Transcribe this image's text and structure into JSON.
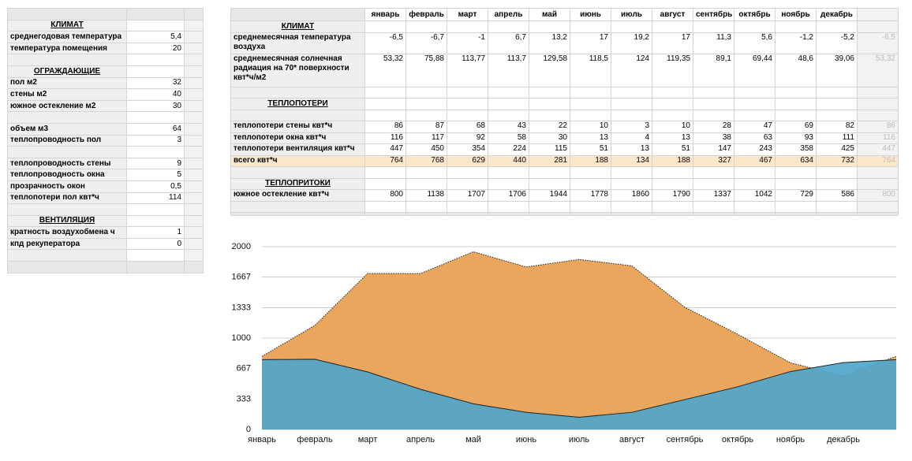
{
  "left_table": {
    "sections": [
      {
        "title": "КЛИМАТ",
        "groups": [
          [
            {
              "label": "среднегодовая температура",
              "value": "5,4"
            },
            {
              "label": "температура помещения",
              "value": "20"
            }
          ]
        ]
      },
      {
        "title": "ОГРАЖДАЮЩИЕ",
        "groups": [
          [
            {
              "label": "пол м2",
              "value": "32"
            },
            {
              "label": "стены м2",
              "value": "40"
            },
            {
              "label": "южное остекление м2",
              "value": "30"
            }
          ],
          [
            {
              "label": "объем м3",
              "value": "64"
            },
            {
              "label": "теплопроводность пол",
              "value": "3"
            }
          ],
          [
            {
              "label": "теплопроводность стены",
              "value": "9"
            },
            {
              "label": "теплопроводность окна",
              "value": "5"
            },
            {
              "label": "прозрачность окон",
              "value": "0,5"
            },
            {
              "label": "теплопотери пол квт*ч",
              "value": "114"
            }
          ]
        ]
      },
      {
        "title": "ВЕНТИЛЯЦИЯ",
        "groups": [
          [
            {
              "label": "кратность воздухобмена ч",
              "value": "1"
            },
            {
              "label": "кпд рекуператора",
              "value": "0"
            }
          ]
        ]
      }
    ]
  },
  "right_table": {
    "months": [
      "январь",
      "февраль",
      "март",
      "апрель",
      "май",
      "июнь",
      "июль",
      "август",
      "сентябрь",
      "октябрь",
      "ноябрь",
      "декабрь"
    ],
    "sections": [
      {
        "title": "КЛИМАТ",
        "rows": [
          {
            "label": "среднемесячная температура воздуха",
            "values": [
              "-6,5",
              "-6,7",
              "-1",
              "6,7",
              "13,2",
              "17",
              "19,2",
              "17",
              "11,3",
              "5,6",
              "-1,2",
              "-5,2"
            ],
            "extra": "-6,5"
          },
          {
            "label": "среднемесячная солнечная радиация на 70* поверхности квт*ч/м2",
            "values": [
              "53,32",
              "75,88",
              "113,77",
              "113,7",
              "129,58",
              "118,5",
              "124",
              "119,35",
              "89,1",
              "69,44",
              "48,6",
              "39,06"
            ],
            "extra": "53,32"
          }
        ]
      },
      {
        "title": "ТЕПЛОПОТЕРИ",
        "rows": [
          {
            "label": "теплопотери стены квт*ч",
            "values": [
              "86",
              "87",
              "68",
              "43",
              "22",
              "10",
              "3",
              "10",
              "28",
              "47",
              "69",
              "82"
            ],
            "extra": "86"
          },
          {
            "label": "теплопотери окна квт*ч",
            "values": [
              "116",
              "117",
              "92",
              "58",
              "30",
              "13",
              "4",
              "13",
              "38",
              "63",
              "93",
              "111"
            ],
            "extra": "116"
          },
          {
            "label": "теплопотери вентиляция квт*ч",
            "values": [
              "447",
              "450",
              "354",
              "224",
              "115",
              "51",
              "13",
              "51",
              "147",
              "243",
              "358",
              "425"
            ],
            "extra": "447"
          },
          {
            "label": "всего квт*ч",
            "values": [
              "764",
              "768",
              "629",
              "440",
              "281",
              "188",
              "134",
              "188",
              "327",
              "467",
              "634",
              "732"
            ],
            "extra": "764"
          }
        ]
      },
      {
        "title": "ТЕПЛОПРИТОКИ",
        "rows": [
          {
            "label": "южное остекление квт*ч",
            "values": [
              "800",
              "1138",
              "1707",
              "1706",
              "1944",
              "1778",
              "1860",
              "1790",
              "1337",
              "1042",
              "729",
              "586"
            ],
            "extra": "800"
          }
        ]
      }
    ]
  },
  "chart_data": {
    "type": "area",
    "categories": [
      "январь",
      "февраль",
      "март",
      "апрель",
      "май",
      "июнь",
      "июль",
      "август",
      "сентябрь",
      "октябрь",
      "ноябрь",
      "декабрь",
      null
    ],
    "series": [
      {
        "color": "#e9a65c",
        "values": [
          800,
          1138,
          1707,
          1706,
          1944,
          1778,
          1860,
          1790,
          1337,
          1042,
          729,
          586,
          800
        ]
      },
      {
        "color": "#4fa6cb",
        "values": [
          764,
          768,
          629,
          440,
          281,
          188,
          134,
          188,
          327,
          467,
          634,
          732,
          764
        ]
      }
    ],
    "ylim": [
      0,
      2000
    ],
    "yticks": [
      0,
      333,
      667,
      1000,
      1333,
      1667,
      2000
    ],
    "grid": true
  }
}
